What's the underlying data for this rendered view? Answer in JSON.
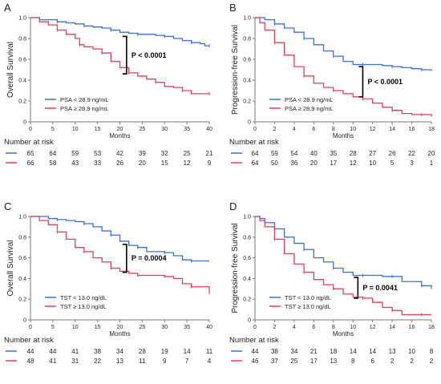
{
  "figure": {
    "risk_title": "Number at risk",
    "colors": {
      "blue": "#3a6fd8",
      "red": "#e0405a",
      "axis": "#7a7a7a",
      "text": "#222222"
    }
  },
  "chart_data": [
    {
      "type": "line",
      "panel_label": "A",
      "xlabel": "Months",
      "ylabel": "Overall Survival",
      "xlim": [
        0,
        40
      ],
      "ylim": [
        0,
        1.0
      ],
      "xticks": [
        0,
        5,
        10,
        15,
        20,
        25,
        30,
        35,
        40
      ],
      "yticks": [
        0,
        0.2,
        0.4,
        0.6,
        0.8,
        1.0
      ],
      "yticklabels": [
        "0",
        "0.2",
        "0.4",
        "0.6",
        "0.8",
        "1.0"
      ],
      "legend_position": "bottom-left",
      "p_value": "P < 0.0001",
      "bracket": {
        "x": 21.5,
        "y_top": 0.82,
        "y_bottom": 0.46
      },
      "series": [
        {
          "name": "PSA < 28.9 ng/mL",
          "color": "blue",
          "x": [
            0,
            2,
            4,
            6,
            8,
            10,
            12,
            14,
            16,
            18,
            20,
            22,
            24,
            26,
            28,
            30,
            32,
            34,
            36,
            38,
            39,
            40
          ],
          "y": [
            1.0,
            0.98,
            0.98,
            0.96,
            0.95,
            0.94,
            0.92,
            0.91,
            0.9,
            0.88,
            0.86,
            0.85,
            0.84,
            0.84,
            0.83,
            0.82,
            0.8,
            0.78,
            0.76,
            0.75,
            0.73,
            0.73
          ]
        },
        {
          "name": "PSA ≥ 28.9 ng/mL",
          "color": "red",
          "x": [
            0,
            2,
            4,
            6,
            8,
            10,
            11,
            12,
            14,
            16,
            18,
            20,
            22,
            24,
            26,
            28,
            30,
            32,
            34,
            36,
            38,
            40
          ],
          "y": [
            1.0,
            0.96,
            0.93,
            0.88,
            0.84,
            0.8,
            0.74,
            0.72,
            0.7,
            0.66,
            0.58,
            0.52,
            0.47,
            0.44,
            0.41,
            0.38,
            0.34,
            0.33,
            0.3,
            0.27,
            0.27,
            0.27
          ]
        }
      ],
      "at_risk": {
        "values": [
          "0",
          "5",
          "10",
          "15",
          "20",
          "25",
          "30",
          "35",
          "40"
        ],
        "rows": [
          {
            "color": "blue",
            "counts": [
              "65",
              "64",
              "59",
              "53",
              "42",
              "39",
              "32",
              "25",
              "21"
            ]
          },
          {
            "color": "red",
            "counts": [
              "66",
              "58",
              "43",
              "33",
              "26",
              "20",
              "15",
              "12",
              "9"
            ]
          }
        ]
      }
    },
    {
      "type": "line",
      "panel_label": "B",
      "xlabel": "Months",
      "ylabel": "Progression-free Survival",
      "xlim": [
        0,
        18
      ],
      "ylim": [
        0,
        1.0
      ],
      "xticks": [
        0,
        2,
        4,
        6,
        8,
        10,
        12,
        14,
        16,
        18
      ],
      "yticks": [
        0,
        0.2,
        0.4,
        0.6,
        0.8,
        1.0
      ],
      "yticklabels": [
        "0",
        "0.2",
        "0.4",
        "0.6",
        "0.8",
        "1.0"
      ],
      "legend_position": "bottom-left",
      "p_value": "P < 0.0001",
      "bracket": {
        "x": 11,
        "y_top": 0.53,
        "y_bottom": 0.24
      },
      "series": [
        {
          "name": "PSA < 28.9 ng/mL",
          "color": "blue",
          "x": [
            0,
            0.5,
            1,
            2,
            3,
            4,
            5,
            6,
            7,
            8,
            9,
            10,
            11,
            12,
            13,
            14,
            15,
            16,
            17,
            18
          ],
          "y": [
            1.0,
            1.0,
            0.98,
            0.94,
            0.9,
            0.86,
            0.8,
            0.74,
            0.68,
            0.63,
            0.58,
            0.55,
            0.55,
            0.55,
            0.54,
            0.53,
            0.52,
            0.51,
            0.5,
            0.49
          ]
        },
        {
          "name": "PSA ≥ 28.9 ng/mL",
          "color": "red",
          "x": [
            0,
            0.5,
            1,
            2,
            3,
            4,
            5,
            6,
            7,
            8,
            9,
            10,
            11,
            12,
            13,
            14,
            15,
            16,
            17,
            18
          ],
          "y": [
            1.0,
            0.95,
            0.88,
            0.76,
            0.64,
            0.53,
            0.44,
            0.37,
            0.33,
            0.3,
            0.27,
            0.24,
            0.22,
            0.18,
            0.14,
            0.11,
            0.08,
            0.07,
            0.07,
            0.05
          ]
        }
      ],
      "at_risk": {
        "values": [
          "0",
          "2",
          "4",
          "6",
          "8",
          "10",
          "12",
          "14",
          "16",
          "18"
        ],
        "rows": [
          {
            "color": "blue",
            "counts": [
              "64",
              "59",
              "54",
              "40",
              "35",
              "28",
              "27",
              "26",
              "22",
              "20"
            ]
          },
          {
            "color": "red",
            "counts": [
              "64",
              "50",
              "36",
              "20",
              "17",
              "12",
              "10",
              "5",
              "3",
              "1"
            ]
          }
        ]
      }
    },
    {
      "type": "line",
      "panel_label": "C",
      "xlabel": "Months",
      "ylabel": "Overall Survival",
      "xlim": [
        0,
        40
      ],
      "ylim": [
        0,
        1.0
      ],
      "xticks": [
        0,
        5,
        10,
        15,
        20,
        25,
        30,
        35,
        40
      ],
      "yticks": [
        0,
        0.2,
        0.4,
        0.6,
        0.8,
        1.0
      ],
      "yticklabels": [
        "0",
        "0.2",
        "0.4",
        "0.6",
        "0.8",
        "1.0"
      ],
      "legend_position": "bottom-left",
      "p_value": "P = 0.0004",
      "bracket": {
        "x": 21.5,
        "y_top": 0.73,
        "y_bottom": 0.46
      },
      "series": [
        {
          "name": "TST < 13.0 ng/dL",
          "color": "blue",
          "x": [
            0,
            2,
            4,
            6,
            8,
            10,
            12,
            14,
            16,
            18,
            20,
            22,
            24,
            26,
            28,
            30,
            32,
            34,
            36,
            38,
            40
          ],
          "y": [
            1.0,
            1.0,
            0.98,
            0.97,
            0.96,
            0.95,
            0.93,
            0.9,
            0.86,
            0.82,
            0.76,
            0.72,
            0.7,
            0.66,
            0.66,
            0.65,
            0.62,
            0.58,
            0.57,
            0.57,
            0.57
          ]
        },
        {
          "name": "TST ≥ 13.0 ng/dL",
          "color": "red",
          "x": [
            0,
            2,
            4,
            6,
            8,
            10,
            12,
            14,
            16,
            18,
            20,
            22,
            24,
            26,
            28,
            30,
            32,
            34,
            36,
            38,
            40
          ],
          "y": [
            1.0,
            0.96,
            0.92,
            0.85,
            0.78,
            0.7,
            0.66,
            0.6,
            0.56,
            0.5,
            0.47,
            0.45,
            0.43,
            0.43,
            0.43,
            0.42,
            0.4,
            0.35,
            0.32,
            0.32,
            0.25
          ]
        }
      ],
      "at_risk": {
        "values": [
          "0",
          "5",
          "10",
          "15",
          "20",
          "25",
          "30",
          "35",
          "40"
        ],
        "rows": [
          {
            "color": "blue",
            "counts": [
              "44",
              "44",
              "41",
              "38",
              "34",
              "28",
              "19",
              "14",
              "11"
            ]
          },
          {
            "color": "red",
            "counts": [
              "48",
              "41",
              "31",
              "22",
              "13",
              "11",
              "9",
              "7",
              "4"
            ]
          }
        ]
      }
    },
    {
      "type": "line",
      "panel_label": "D",
      "xlabel": "Months",
      "ylabel": "Progression-free Survival",
      "xlim": [
        0,
        18
      ],
      "ylim": [
        0,
        1.0
      ],
      "xticks": [
        0,
        2,
        4,
        6,
        8,
        10,
        12,
        14,
        16,
        18
      ],
      "yticks": [
        0,
        0.2,
        0.4,
        0.6,
        0.8,
        1.0
      ],
      "yticklabels": [
        "0",
        "0.2",
        "0.4",
        "0.6",
        "0.8",
        "1.0"
      ],
      "legend_position": "bottom-left",
      "p_value": "P = 0.0041",
      "bracket": {
        "x": 10.5,
        "y_top": 0.41,
        "y_bottom": 0.21
      },
      "series": [
        {
          "name": "TST < 13.0 ng/dL",
          "color": "blue",
          "x": [
            0,
            0.5,
            1,
            2,
            3,
            4,
            5,
            6,
            7,
            8,
            9,
            10,
            11,
            12,
            13,
            14,
            15,
            16,
            17,
            18
          ],
          "y": [
            1.0,
            0.98,
            0.94,
            0.88,
            0.8,
            0.74,
            0.68,
            0.6,
            0.56,
            0.5,
            0.46,
            0.43,
            0.43,
            0.43,
            0.42,
            0.42,
            0.37,
            0.37,
            0.33,
            0.3
          ]
        },
        {
          "name": "TST ≥ 13.0 ng/dL",
          "color": "red",
          "x": [
            0,
            0.5,
            1,
            2,
            3,
            4,
            5,
            6,
            7,
            8,
            9,
            10,
            11,
            12,
            13,
            14,
            15,
            16,
            17,
            18
          ],
          "y": [
            1.0,
            0.96,
            0.9,
            0.78,
            0.64,
            0.54,
            0.46,
            0.39,
            0.34,
            0.3,
            0.25,
            0.22,
            0.21,
            0.17,
            0.12,
            0.09,
            0.05,
            0.05,
            0.05,
            0.05
          ]
        }
      ],
      "at_risk": {
        "values": [
          "0",
          "2",
          "4",
          "6",
          "8",
          "10",
          "12",
          "14",
          "16",
          "18"
        ],
        "rows": [
          {
            "color": "blue",
            "counts": [
              "44",
              "38",
              "34",
              "21",
              "18",
              "14",
              "14",
              "13",
              "10",
              "8"
            ]
          },
          {
            "color": "red",
            "counts": [
              "46",
              "37",
              "25",
              "17",
              "13",
              "8",
              "6",
              "2",
              "2",
              "2"
            ]
          }
        ]
      }
    }
  ]
}
